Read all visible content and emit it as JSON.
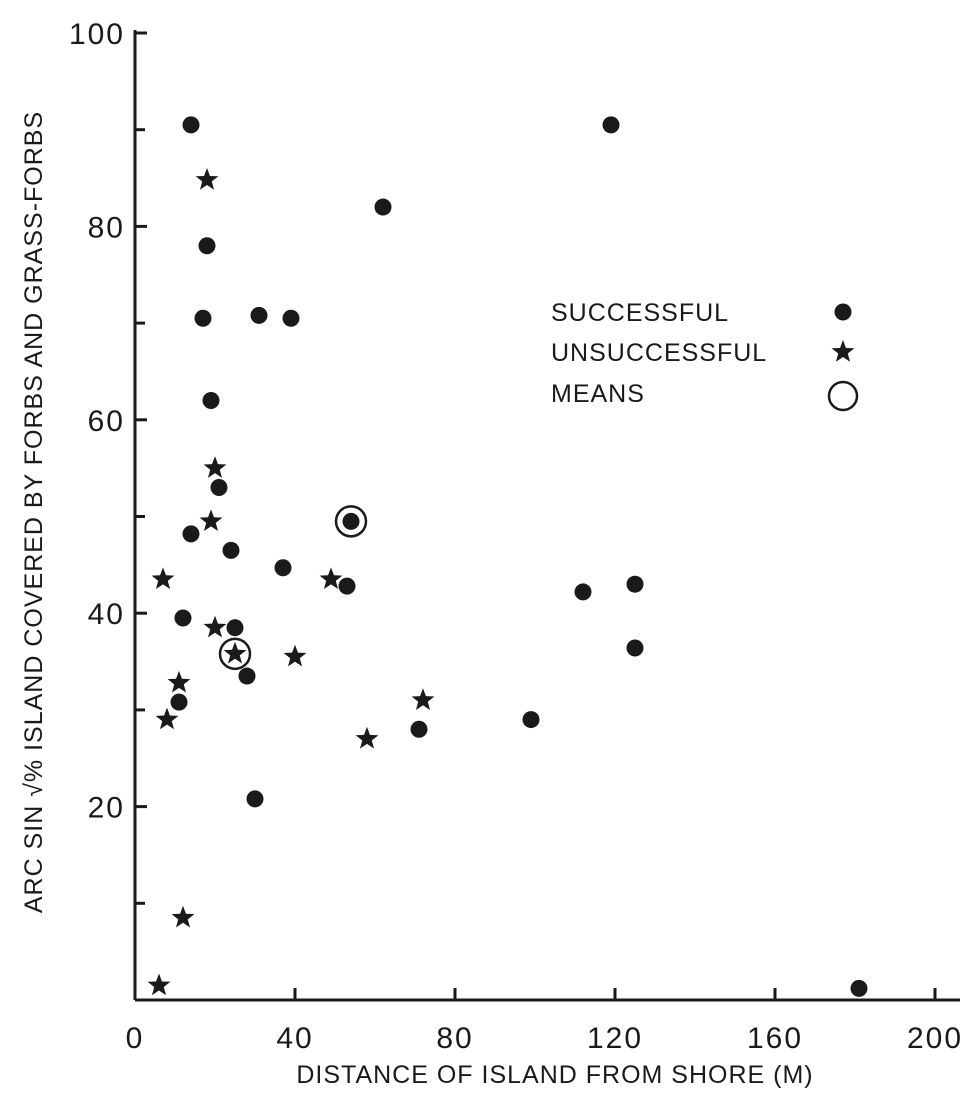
{
  "chart_data": {
    "type": "scatter",
    "xlabel": "DISTANCE OF ISLAND FROM SHORE (M)",
    "ylabel": "ARC SIN √% ISLAND COVERED BY FORBS AND GRASS-FORBS",
    "xlim": [
      0,
      200
    ],
    "ylim": [
      0,
      100
    ],
    "x_ticks": [
      {
        "value": 0,
        "label": "0"
      },
      {
        "value": 40,
        "label": "40"
      },
      {
        "value": 80,
        "label": "80"
      },
      {
        "value": 120,
        "label": "120"
      },
      {
        "value": 160,
        "label": "160"
      },
      {
        "value": 200,
        "label": "200"
      }
    ],
    "y_ticks": [
      {
        "value": 20,
        "label": "20"
      },
      {
        "value": 40,
        "label": "40"
      },
      {
        "value": 60,
        "label": "60"
      },
      {
        "value": 80,
        "label": "80"
      },
      {
        "value": 100,
        "label": "100"
      }
    ],
    "y_minor_ticks": [
      10,
      30,
      50,
      70,
      90
    ],
    "grid": false,
    "legend_position": "right",
    "series": [
      {
        "name": "SUCCESSFUL",
        "marker": "dot",
        "points": [
          [
            14,
            90.5
          ],
          [
            18,
            78
          ],
          [
            17,
            70.5
          ],
          [
            31,
            70.8
          ],
          [
            39,
            70.5
          ],
          [
            19,
            62
          ],
          [
            62,
            82
          ],
          [
            119,
            90.5
          ],
          [
            21,
            53
          ],
          [
            14,
            48.2
          ],
          [
            24,
            46.5
          ],
          [
            37,
            44.7
          ],
          [
            53,
            42.8
          ],
          [
            112,
            42.2
          ],
          [
            125,
            43
          ],
          [
            12,
            39.5
          ],
          [
            25,
            38.5
          ],
          [
            28,
            33.5
          ],
          [
            11,
            30.8
          ],
          [
            125,
            36.4
          ],
          [
            99,
            29
          ],
          [
            71,
            28
          ],
          [
            30,
            20.8
          ],
          [
            181,
            1.2
          ]
        ]
      },
      {
        "name": "UNSUCCESSFUL",
        "marker": "star",
        "points": [
          [
            18,
            84.8
          ],
          [
            20,
            55
          ],
          [
            19,
            49.5
          ],
          [
            7,
            43.5
          ],
          [
            49,
            43.5
          ],
          [
            20,
            38.5
          ],
          [
            40,
            35.5
          ],
          [
            11,
            32.8
          ],
          [
            8,
            29
          ],
          [
            72,
            31
          ],
          [
            58,
            27
          ],
          [
            12,
            8.5
          ],
          [
            6,
            1.5
          ]
        ]
      },
      {
        "name": "MEANS",
        "marker": "circle",
        "points": [
          {
            "x": 54,
            "y": 49.5,
            "inner": "dot"
          },
          {
            "x": 25,
            "y": 35.8,
            "inner": "star"
          }
        ]
      }
    ]
  },
  "colors": {
    "ink": "#1a1a1a",
    "background": "#ffffff"
  }
}
